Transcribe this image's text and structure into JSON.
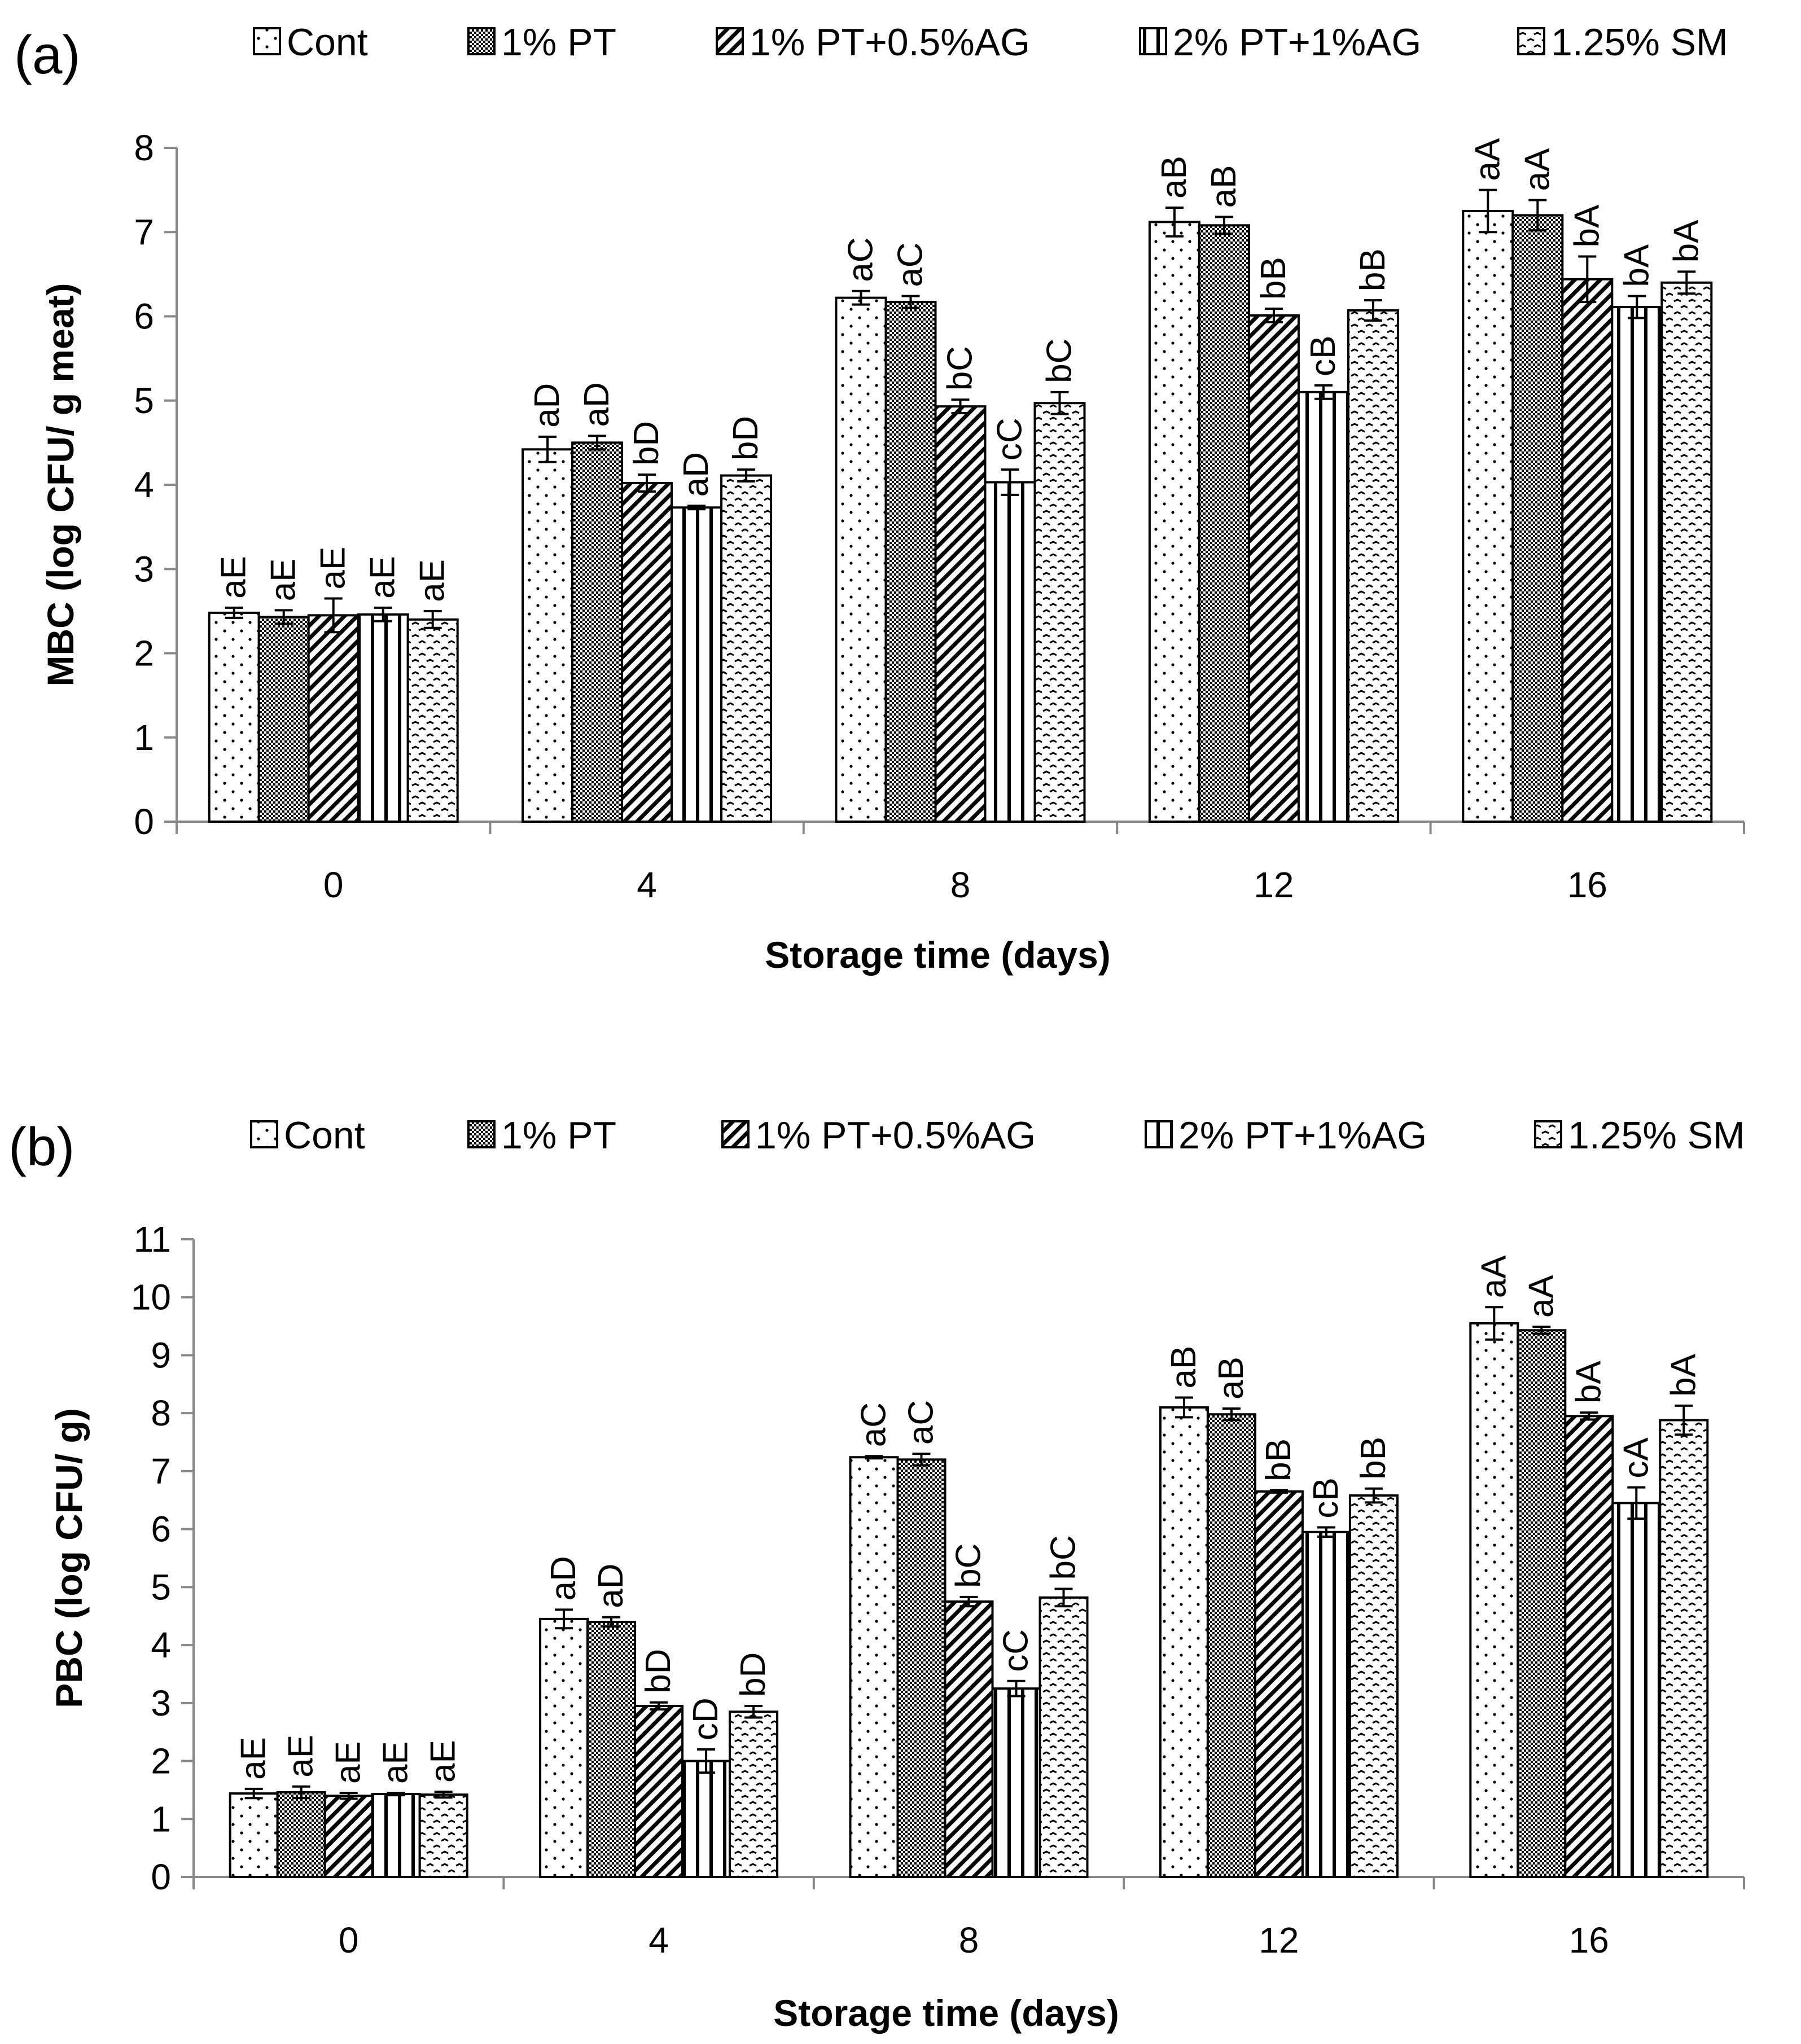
{
  "figure": {
    "panels": [
      "(a)",
      "(b)"
    ]
  },
  "chart_data": [
    {
      "panel_label": "(a)",
      "type": "bar",
      "title": "",
      "xlabel": "Storage time (days)",
      "ylabel": "MBC (log CFU/ g meat)",
      "ylim": [
        0,
        8
      ],
      "yticks": [
        "0",
        "1",
        "2",
        "3",
        "4",
        "5",
        "6",
        "7",
        "8"
      ],
      "categories": [
        "0",
        "4",
        "8",
        "12",
        "16"
      ],
      "legend_position": "top",
      "series": [
        {
          "name": "Cont",
          "pattern": "dots",
          "values": [
            2.48,
            4.42,
            6.22,
            7.12,
            7.25
          ],
          "errors": [
            0.06,
            0.15,
            0.08,
            0.17,
            0.25
          ],
          "labels": [
            "aE",
            "aD",
            "aC",
            "aB",
            "aA"
          ]
        },
        {
          "name": "1% PT",
          "pattern": "checker",
          "values": [
            2.43,
            4.5,
            6.17,
            7.08,
            7.2
          ],
          "errors": [
            0.08,
            0.08,
            0.07,
            0.1,
            0.18
          ],
          "labels": [
            "aE",
            "aD",
            "aC",
            "aB",
            "aA"
          ]
        },
        {
          "name": "1% PT+0.5%AG",
          "pattern": "diagonal",
          "values": [
            2.45,
            4.02,
            4.93,
            6.01,
            6.44
          ],
          "errors": [
            0.2,
            0.1,
            0.08,
            0.08,
            0.27
          ],
          "labels": [
            "aE",
            "bD",
            "bC",
            "bB",
            "bA"
          ]
        },
        {
          "name": "2% PT+1%AG",
          "pattern": "vertical",
          "values": [
            2.46,
            3.73,
            4.03,
            5.1,
            6.11
          ],
          "errors": [
            0.08,
            0.02,
            0.15,
            0.08,
            0.13
          ],
          "labels": [
            "aE",
            "aD",
            "cC",
            "cB",
            "bA"
          ]
        },
        {
          "name": "1.25% SM",
          "pattern": "wave",
          "values": [
            2.4,
            4.11,
            4.97,
            6.07,
            6.4
          ],
          "errors": [
            0.1,
            0.07,
            0.13,
            0.12,
            0.13
          ],
          "labels": [
            "aE",
            "bD",
            "bC",
            "bB",
            "bA"
          ]
        }
      ]
    },
    {
      "panel_label": "(b)",
      "type": "bar",
      "title": "",
      "xlabel": "Storage time (days)",
      "ylabel": "PBC (log CFU/ g)",
      "ylim": [
        0,
        11
      ],
      "yticks": [
        "0",
        "1",
        "2",
        "3",
        "4",
        "5",
        "6",
        "7",
        "8",
        "9",
        "10",
        "11"
      ],
      "categories": [
        "0",
        "4",
        "8",
        "12",
        "16"
      ],
      "legend_position": "top",
      "series": [
        {
          "name": "Cont",
          "pattern": "dots",
          "values": [
            1.44,
            4.45,
            7.24,
            8.1,
            9.55
          ],
          "errors": [
            0.08,
            0.16,
            0.02,
            0.17,
            0.28
          ],
          "labels": [
            "aE",
            "aD",
            "aC",
            "aB",
            "aA"
          ]
        },
        {
          "name": "1% PT",
          "pattern": "checker",
          "values": [
            1.46,
            4.4,
            7.2,
            7.98,
            9.43
          ],
          "errors": [
            0.1,
            0.08,
            0.1,
            0.1,
            0.06
          ],
          "labels": [
            "aE",
            "aD",
            "aC",
            "aB",
            "aA"
          ]
        },
        {
          "name": "1% PT+0.5%AG",
          "pattern": "diagonal",
          "values": [
            1.4,
            2.95,
            4.75,
            6.65,
            7.95
          ],
          "errors": [
            0.05,
            0.06,
            0.08,
            0.02,
            0.06
          ],
          "labels": [
            "aE",
            "bD",
            "bC",
            "bB",
            "bA"
          ]
        },
        {
          "name": "2% PT+1%AG",
          "pattern": "vertical",
          "values": [
            1.43,
            2.0,
            3.25,
            5.95,
            6.45
          ],
          "errors": [
            0.02,
            0.2,
            0.13,
            0.08,
            0.27
          ],
          "labels": [
            "aE",
            "cD",
            "cC",
            "cB",
            "cA"
          ]
        },
        {
          "name": "1.25% SM",
          "pattern": "wave",
          "values": [
            1.42,
            2.85,
            4.82,
            6.58,
            7.88
          ],
          "errors": [
            0.05,
            0.1,
            0.15,
            0.12,
            0.25
          ],
          "labels": [
            "aE",
            "bD",
            "bC",
            "bB",
            "bA"
          ]
        }
      ]
    }
  ]
}
